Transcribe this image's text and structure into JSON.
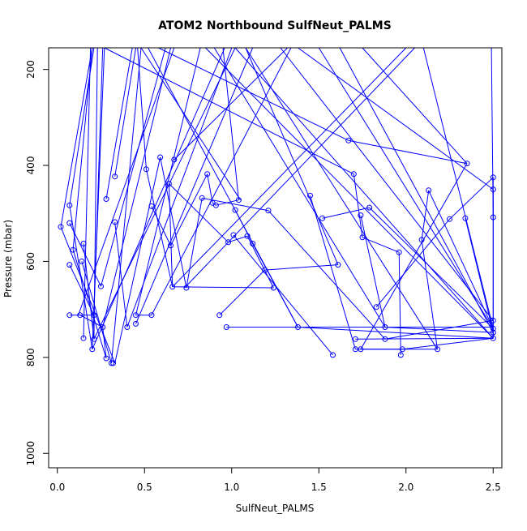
{
  "chart_data": {
    "type": "line",
    "title": "ATOM2 Northbound SulfNeut_PALMS",
    "xlabel": "SulfNeut_PALMS",
    "ylabel": "Pressure (mbar)",
    "xlim": [
      -0.05,
      2.55
    ],
    "ylim": [
      1030,
      155
    ],
    "y_reversed": true,
    "x_ticks": [
      0.0,
      0.5,
      1.0,
      1.5,
      2.0,
      2.5
    ],
    "x_tick_labels": [
      "0.0",
      "0.5",
      "1.0",
      "1.5",
      "2.0",
      "2.5"
    ],
    "y_ticks": [
      200,
      400,
      600,
      800,
      1000
    ],
    "y_tick_labels": [
      "200",
      "400",
      "600",
      "800",
      "1000"
    ],
    "grid": false,
    "legend": "none",
    "color": "#0000ff",
    "series": [
      {
        "marker": "open-circle",
        "points": [
          {
            "x": 0.02,
            "y": 528
          },
          {
            "x": 0.07,
            "y": 483
          },
          {
            "x": 0.07,
            "y": 520
          },
          {
            "x": 0.09,
            "y": 576
          },
          {
            "x": 0.07,
            "y": 607
          },
          {
            "x": 0.07,
            "y": 712
          },
          {
            "x": 0.15,
            "y": 563
          },
          {
            "x": 0.14,
            "y": 600
          },
          {
            "x": 0.13,
            "y": 712
          },
          {
            "x": 0.15,
            "y": 760
          },
          {
            "x": 0.21,
            "y": 712
          },
          {
            "x": 0.21,
            "y": 762
          },
          {
            "x": 0.2,
            "y": 783
          },
          {
            "x": 0.25,
            "y": 652
          },
          {
            "x": 0.26,
            "y": 737
          },
          {
            "x": 0.28,
            "y": 802
          },
          {
            "x": 0.28,
            "y": 470
          },
          {
            "x": 0.33,
            "y": 423
          },
          {
            "x": 0.33,
            "y": 518
          },
          {
            "x": 0.31,
            "y": 812
          },
          {
            "x": 0.32,
            "y": 812
          },
          {
            "x": 0.4,
            "y": 737
          },
          {
            "x": 0.45,
            "y": 712
          },
          {
            "x": 0.45,
            "y": 730
          },
          {
            "x": 0.51,
            "y": 408
          },
          {
            "x": 0.54,
            "y": 485
          },
          {
            "x": 0.54,
            "y": 712
          },
          {
            "x": 0.59,
            "y": 383
          },
          {
            "x": 0.64,
            "y": 438
          },
          {
            "x": 0.65,
            "y": 567
          },
          {
            "x": 0.66,
            "y": 653
          },
          {
            "x": 0.67,
            "y": 388
          },
          {
            "x": 0.74,
            "y": 655
          },
          {
            "x": 0.83,
            "y": 468
          },
          {
            "x": 0.86,
            "y": 418
          },
          {
            "x": 0.89,
            "y": 478
          },
          {
            "x": 0.91,
            "y": 483
          },
          {
            "x": 0.93,
            "y": 712
          },
          {
            "x": 0.97,
            "y": 737
          },
          {
            "x": 0.98,
            "y": 560
          },
          {
            "x": 1.01,
            "y": 545
          },
          {
            "x": 1.02,
            "y": 493
          },
          {
            "x": 1.04,
            "y": 472
          },
          {
            "x": 1.09,
            "y": 547
          },
          {
            "x": 1.12,
            "y": 563
          },
          {
            "x": 1.19,
            "y": 618
          },
          {
            "x": 1.21,
            "y": 494
          },
          {
            "x": 1.24,
            "y": 655
          },
          {
            "x": 1.38,
            "y": 737
          },
          {
            "x": 1.45,
            "y": 463
          },
          {
            "x": 1.52,
            "y": 510
          },
          {
            "x": 1.58,
            "y": 795
          },
          {
            "x": 1.61,
            "y": 607
          },
          {
            "x": 1.67,
            "y": 348
          },
          {
            "x": 1.7,
            "y": 418
          },
          {
            "x": 1.71,
            "y": 762
          },
          {
            "x": 1.71,
            "y": 783
          },
          {
            "x": 1.74,
            "y": 504
          },
          {
            "x": 1.74,
            "y": 783
          },
          {
            "x": 1.75,
            "y": 550
          },
          {
            "x": 1.79,
            "y": 488
          },
          {
            "x": 1.83,
            "y": 695
          },
          {
            "x": 1.88,
            "y": 737
          },
          {
            "x": 1.88,
            "y": 762
          },
          {
            "x": 1.96,
            "y": 581
          },
          {
            "x": 1.97,
            "y": 795
          },
          {
            "x": 1.98,
            "y": 783
          },
          {
            "x": 2.09,
            "y": 555
          },
          {
            "x": 2.13,
            "y": 452
          },
          {
            "x": 2.18,
            "y": 783
          },
          {
            "x": 2.25,
            "y": 512
          },
          {
            "x": 2.34,
            "y": 510
          },
          {
            "x": 2.35,
            "y": 396
          },
          {
            "x": 2.5,
            "y": 425
          },
          {
            "x": 2.5,
            "y": 450
          },
          {
            "x": 2.5,
            "y": 508
          },
          {
            "x": 2.5,
            "y": 723
          },
          {
            "x": 2.5,
            "y": 740
          },
          {
            "x": 2.5,
            "y": 748
          },
          {
            "x": 2.5,
            "y": 760
          }
        ]
      }
    ],
    "segments": [
      [
        0.02,
        528,
        0.33,
        812
      ],
      [
        0.07,
        483,
        0.2,
        783
      ],
      [
        0.07,
        520,
        0.25,
        652
      ],
      [
        0.09,
        576,
        0.28,
        802
      ],
      [
        0.07,
        607,
        0.21,
        712
      ],
      [
        0.07,
        712,
        0.21,
        712
      ],
      [
        0.15,
        563,
        0.21,
        762
      ],
      [
        0.14,
        600,
        0.31,
        812
      ],
      [
        0.13,
        712,
        0.26,
        737
      ],
      [
        0.15,
        760,
        0.19,
        155
      ],
      [
        0.21,
        712,
        0.26,
        155
      ],
      [
        0.21,
        762,
        0.23,
        155
      ],
      [
        0.2,
        783,
        0.27,
        155
      ],
      [
        0.07,
        483,
        0.21,
        155
      ],
      [
        0.02,
        528,
        0.2,
        155
      ],
      [
        0.09,
        576,
        0.2,
        155
      ],
      [
        0.25,
        652,
        0.62,
        155
      ],
      [
        0.26,
        737,
        0.65,
        155
      ],
      [
        0.28,
        470,
        0.43,
        155
      ],
      [
        0.33,
        423,
        0.45,
        155
      ],
      [
        0.33,
        518,
        0.4,
        737
      ],
      [
        0.28,
        802,
        0.26,
        737
      ],
      [
        0.4,
        737,
        1.0,
        155
      ],
      [
        0.45,
        712,
        0.54,
        712
      ],
      [
        0.45,
        730,
        1.12,
        155
      ],
      [
        0.51,
        408,
        0.66,
        653
      ],
      [
        0.54,
        485,
        0.65,
        567
      ],
      [
        0.54,
        712,
        1.34,
        155
      ],
      [
        0.59,
        383,
        0.74,
        655
      ],
      [
        0.64,
        438,
        0.66,
        653
      ],
      [
        0.65,
        567,
        0.86,
        418
      ],
      [
        0.67,
        388,
        1.32,
        155
      ],
      [
        0.66,
        653,
        1.24,
        655
      ],
      [
        0.74,
        655,
        0.83,
        468
      ],
      [
        0.83,
        468,
        1.21,
        494
      ],
      [
        0.86,
        418,
        0.89,
        478
      ],
      [
        0.89,
        478,
        0.91,
        483
      ],
      [
        0.91,
        483,
        1.04,
        472
      ],
      [
        0.93,
        712,
        1.19,
        618
      ],
      [
        0.97,
        737,
        2.5,
        737
      ],
      [
        0.98,
        560,
        1.09,
        547
      ],
      [
        1.01,
        545,
        1.58,
        795
      ],
      [
        1.02,
        493,
        1.12,
        563
      ],
      [
        1.04,
        472,
        0.95,
        155
      ],
      [
        1.09,
        547,
        1.24,
        655
      ],
      [
        1.12,
        563,
        1.38,
        737
      ],
      [
        1.19,
        618,
        1.61,
        607
      ],
      [
        1.21,
        494,
        1.88,
        762
      ],
      [
        1.38,
        737,
        2.5,
        760
      ],
      [
        1.45,
        463,
        1.71,
        783
      ],
      [
        1.52,
        510,
        1.79,
        488
      ],
      [
        1.61,
        607,
        1.08,
        155
      ],
      [
        1.67,
        348,
        2.35,
        396
      ],
      [
        1.7,
        418,
        1.75,
        550
      ],
      [
        1.71,
        762,
        2.5,
        760
      ],
      [
        1.71,
        783,
        1.98,
        783
      ],
      [
        1.74,
        504,
        1.88,
        737
      ],
      [
        1.74,
        783,
        2.18,
        783
      ],
      [
        1.75,
        550,
        1.96,
        581
      ],
      [
        1.79,
        488,
        2.5,
        740
      ],
      [
        1.83,
        695,
        2.25,
        512
      ],
      [
        1.88,
        737,
        2.5,
        748
      ],
      [
        1.88,
        762,
        2.5,
        723
      ],
      [
        1.96,
        581,
        1.97,
        795
      ],
      [
        1.98,
        783,
        2.5,
        760
      ],
      [
        2.09,
        555,
        2.13,
        452
      ],
      [
        2.13,
        452,
        2.5,
        740
      ],
      [
        2.18,
        783,
        2.09,
        555
      ],
      [
        2.25,
        512,
        2.5,
        425
      ],
      [
        2.34,
        510,
        2.5,
        748
      ],
      [
        2.35,
        396,
        1.74,
        783
      ],
      [
        2.5,
        425,
        2.5,
        760
      ],
      [
        2.5,
        450,
        2.5,
        760
      ],
      [
        2.5,
        508,
        2.49,
        155
      ],
      [
        0.33,
        812,
        0.59,
        383
      ],
      [
        0.31,
        812,
        0.48,
        155
      ],
      [
        0.12,
        712,
        0.67,
        155
      ],
      [
        0.21,
        762,
        1.02,
        155
      ],
      [
        0.45,
        712,
        0.82,
        155
      ],
      [
        1.38,
        737,
        0.52,
        155
      ],
      [
        0.2,
        783,
        0.96,
        155
      ],
      [
        1.5,
        155,
        2.5,
        740
      ],
      [
        1.02,
        155,
        2.5,
        760
      ],
      [
        1.62,
        155,
        2.5,
        748
      ],
      [
        1.28,
        155,
        2.5,
        723
      ],
      [
        0.85,
        155,
        2.5,
        760
      ],
      [
        0.48,
        155,
        1.05,
        472
      ],
      [
        2.1,
        155,
        2.5,
        740
      ],
      [
        1.92,
        155,
        2.2,
        155
      ],
      [
        1.36,
        155,
        1.5,
        155
      ],
      [
        1.08,
        155,
        2.18,
        783
      ],
      [
        0.9,
        155,
        1.88,
        737
      ],
      [
        1.75,
        155,
        2.35,
        396
      ],
      [
        1.38,
        155,
        2.5,
        450
      ],
      [
        0.58,
        155,
        1.67,
        348
      ],
      [
        0.27,
        155,
        1.7,
        418
      ],
      [
        0.66,
        653,
        2.0,
        155
      ],
      [
        0.51,
        408,
        0.46,
        155
      ],
      [
        0.73,
        655,
        2.05,
        155
      ],
      [
        0.93,
        155,
        0.78,
        155
      ],
      [
        0.64,
        438,
        0.98,
        560
      ]
    ]
  }
}
